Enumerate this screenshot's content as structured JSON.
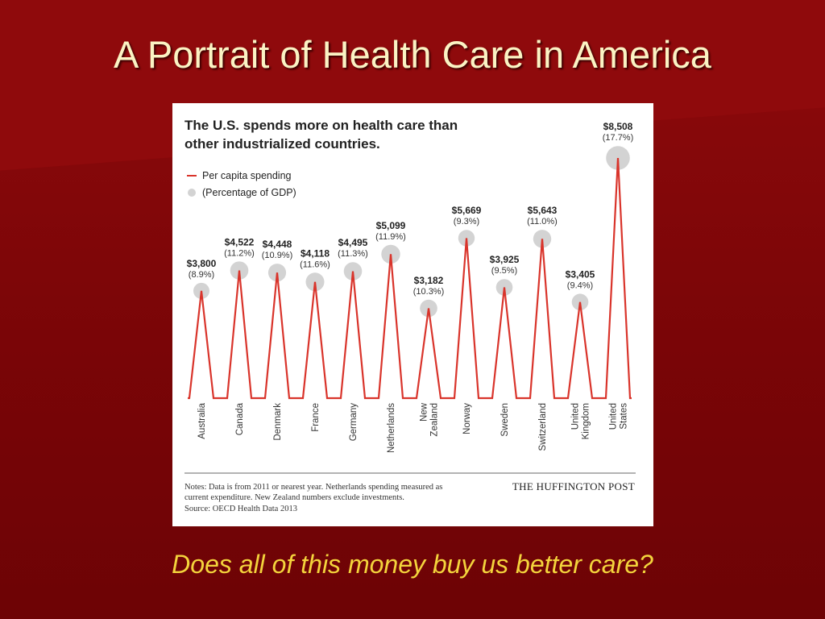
{
  "slide": {
    "title": "A Portrait of Health Care in America",
    "caption": "Does all of this money buy us better care?"
  },
  "colors": {
    "background": "#7a0507",
    "title": "#fbf3c4",
    "caption": "#f4d43c",
    "line": "#d9342b",
    "marker": "#d3d3d3"
  },
  "chart_data": {
    "type": "line",
    "title": [
      "The U.S. spends more on health care than",
      "other industrialized countries."
    ],
    "legend": {
      "placement": "top-left",
      "items": [
        {
          "label": "Per capita spending",
          "symbol": "line"
        },
        {
          "label": "(Percentage of GDP)",
          "symbol": "circle"
        }
      ]
    },
    "categories": [
      [
        "Australia"
      ],
      [
        "Canada"
      ],
      [
        "Denmark"
      ],
      [
        "France"
      ],
      [
        "Germany"
      ],
      [
        "Netherlands"
      ],
      [
        "New",
        "Zealand"
      ],
      [
        "Norway"
      ],
      [
        "Sweden"
      ],
      [
        "Switzerland"
      ],
      [
        "United",
        "Kingdom"
      ],
      [
        "United",
        "States"
      ]
    ],
    "series": [
      {
        "values": [
          3800,
          4522,
          4448,
          4118,
          4495,
          5099,
          3182,
          5669,
          3925,
          5643,
          3405,
          8508
        ],
        "value_labels": [
          "$3,800",
          "$4,522",
          "$4,448",
          "$4,118",
          "$4,495",
          "$5,099",
          "$3,182",
          "$5,669",
          "$3,925",
          "$5,643",
          "$3,405",
          "$8,508"
        ]
      },
      {
        "values": [
          8.9,
          11.2,
          10.9,
          11.6,
          11.3,
          11.9,
          10.3,
          9.3,
          9.5,
          11.0,
          9.4,
          17.7
        ],
        "value_labels": [
          "(8.9%)",
          "(11.2%)",
          "(10.9%)",
          "(11.6%)",
          "(11.3%)",
          "(11.9%)",
          "(10.3%)",
          "(9.3%)",
          "(9.5%)",
          "(11.0%)",
          "(9.4%)",
          "(17.7%)"
        ]
      }
    ],
    "ylim": [
      0,
      8508
    ],
    "grid": false,
    "notes": [
      "Notes: Data is from 2011 or nearest year. Netherlands spending measured as",
      "current expenditure. New Zealand numbers exclude investments.",
      "Source: OECD Health Data 2013"
    ],
    "publisher": "THE HUFFINGTON POST"
  }
}
